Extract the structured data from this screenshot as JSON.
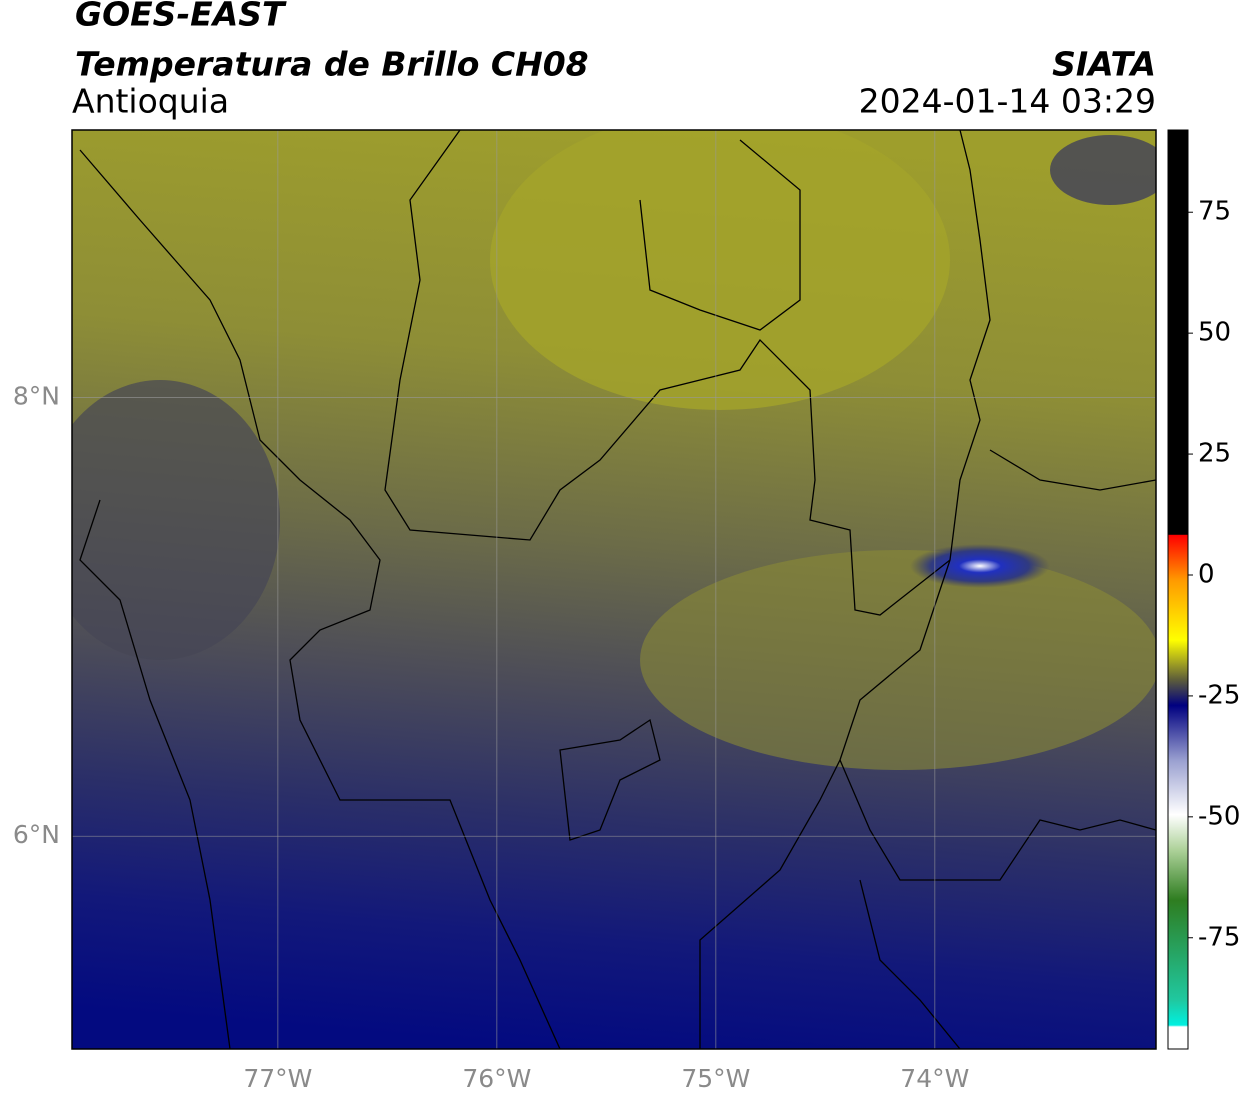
{
  "header": {
    "satellite": "GOES-EAST",
    "product": "Temperatura de Brillo CH08",
    "region": "Antioquia",
    "agency": "SIATA",
    "datetime": "2024-01-14 03:29"
  },
  "chart_data": {
    "type": "map",
    "xlim": [
      -77.94,
      -72.99
    ],
    "ylim": [
      5.03,
      9.22
    ],
    "xticks": [
      {
        "value": -77,
        "label": "77°W"
      },
      {
        "value": -76,
        "label": "76°W"
      },
      {
        "value": -75,
        "label": "75°W"
      },
      {
        "value": -74,
        "label": "74°W"
      }
    ],
    "yticks": [
      {
        "value": 6,
        "label": "6°N"
      },
      {
        "value": 8,
        "label": "8°N"
      }
    ],
    "grid": true,
    "colorbar": {
      "lim": [
        -98,
        92
      ],
      "ticks": [
        75,
        50,
        25,
        0,
        -25,
        -50,
        -75
      ]
    }
  }
}
